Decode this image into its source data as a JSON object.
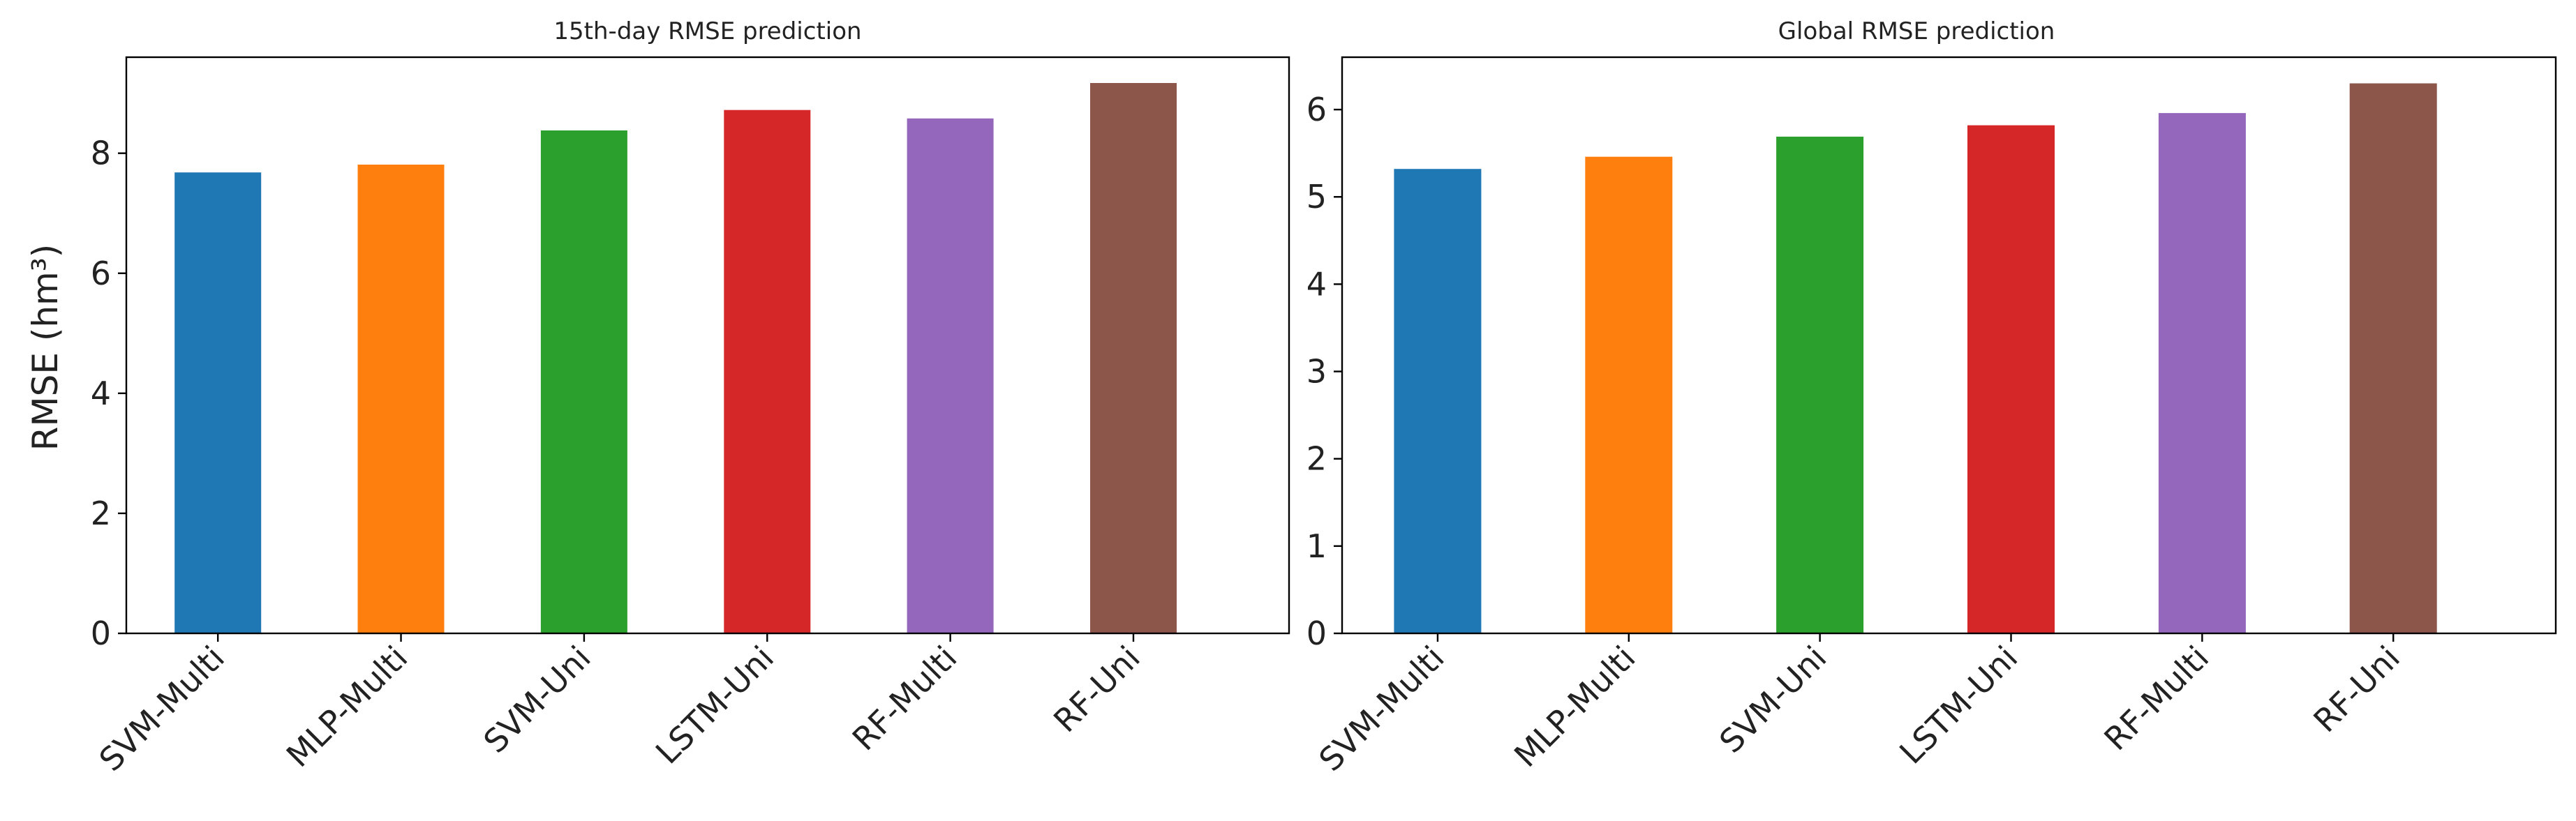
{
  "chart_data": [
    {
      "type": "bar",
      "title": "15th-day RMSE prediction",
      "xlabel": "",
      "ylabel": "RMSE (hm³)",
      "categories": [
        "SVM-Multi",
        "MLP-Multi",
        "SVM-Uni",
        "LSTM-Uni",
        "RF-Multi",
        "RF-Uni"
      ],
      "values": [
        7.68,
        7.81,
        8.38,
        8.72,
        8.58,
        9.17
      ],
      "colors": [
        "#1f77b4",
        "#ff7f0e",
        "#2ca02c",
        "#d62728",
        "#9467bd",
        "#8c564b"
      ],
      "ylim": [
        0,
        9.6
      ],
      "yticks": [
        0,
        2,
        4,
        6,
        8
      ],
      "grid": false,
      "legend": "none"
    },
    {
      "type": "bar",
      "title": "Global RMSE prediction",
      "xlabel": "",
      "ylabel": "",
      "categories": [
        "SVM-Multi",
        "MLP-Multi",
        "SVM-Uni",
        "LSTM-Uni",
        "RF-Multi",
        "RF-Uni"
      ],
      "values": [
        5.32,
        5.46,
        5.69,
        5.82,
        5.96,
        6.3
      ],
      "colors": [
        "#1f77b4",
        "#ff7f0e",
        "#2ca02c",
        "#d62728",
        "#9467bd",
        "#8c564b"
      ],
      "ylim": [
        0,
        6.6
      ],
      "yticks": [
        0,
        1,
        2,
        3,
        4,
        5,
        6
      ],
      "grid": false,
      "legend": "none"
    }
  ]
}
